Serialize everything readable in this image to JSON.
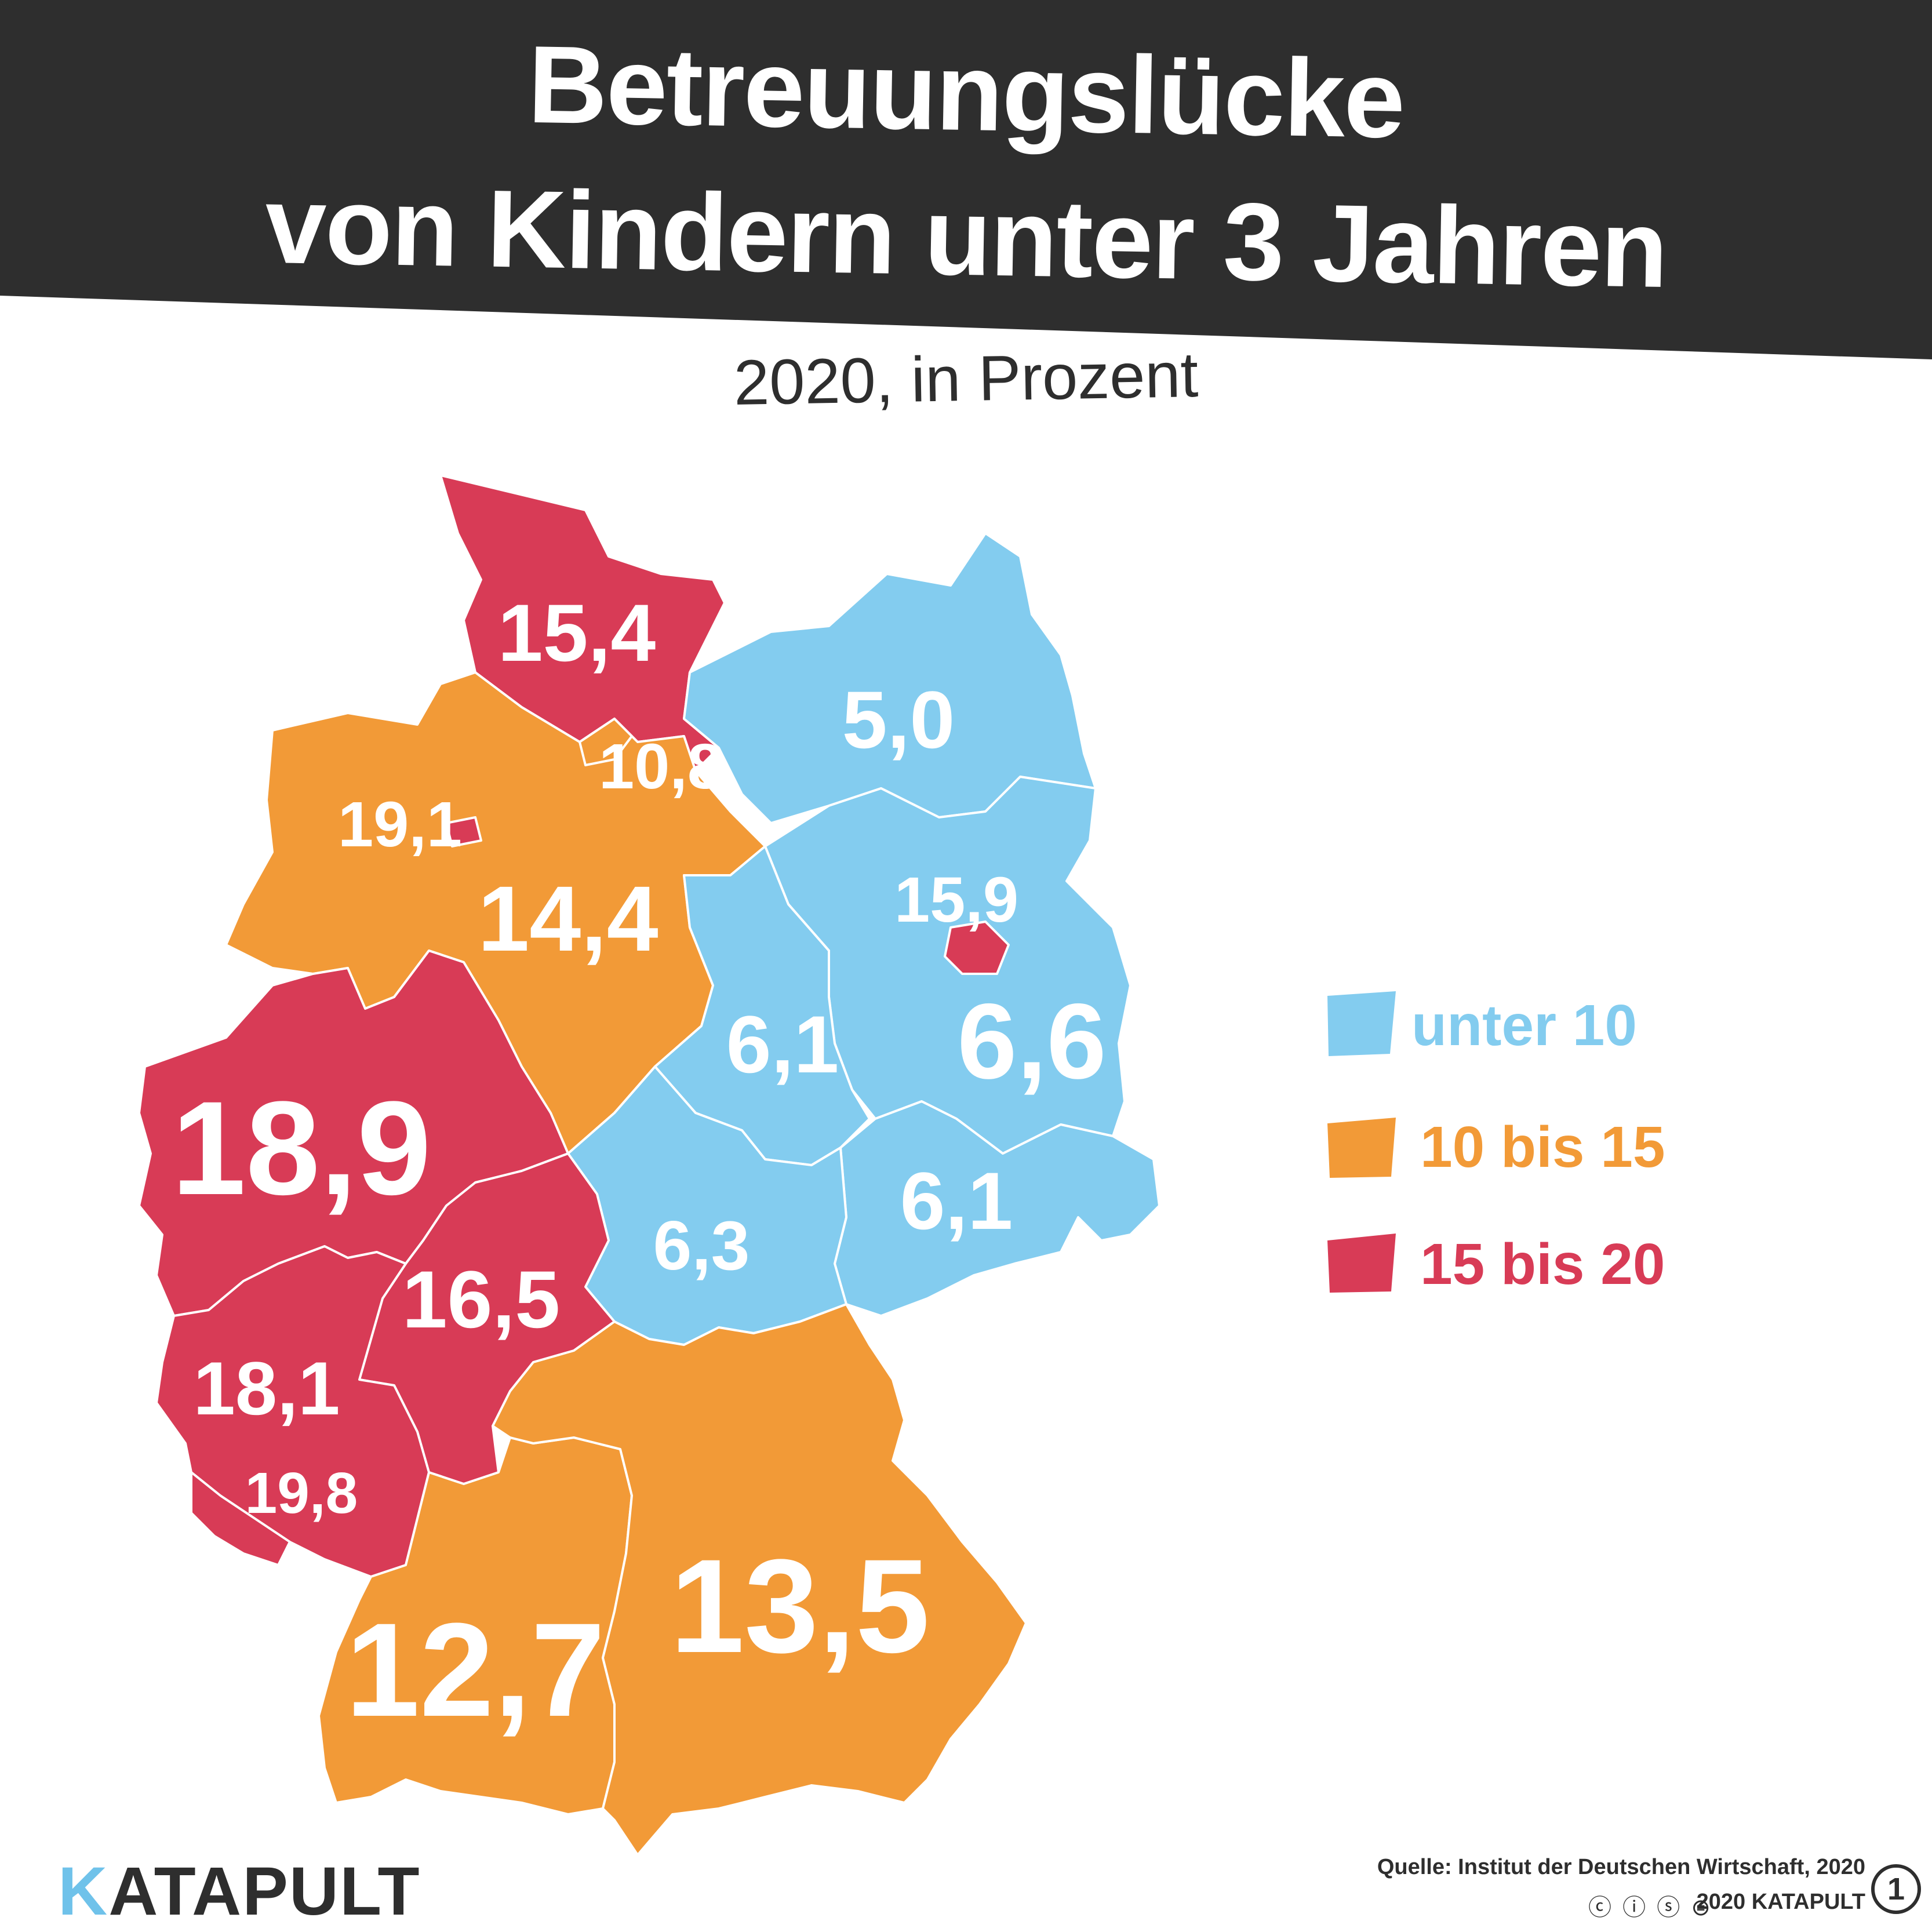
{
  "header": {
    "title_line1": "Betreuungslücke",
    "title_line2": "von Kindern unter 3 Jahren",
    "subtitle": "2020, in Prozent"
  },
  "colors": {
    "header_bg": "#2e2e2e",
    "blue": "#83ccef",
    "orange": "#f29a37",
    "red": "#d83b56",
    "text_dark": "#2e2e2e"
  },
  "states": [
    {
      "id": "schleswig-holstein",
      "value": "15,4",
      "category": "red"
    },
    {
      "id": "mecklenburg-vorpommern",
      "value": "5,0",
      "category": "blue"
    },
    {
      "id": "hamburg",
      "value": "10,8",
      "category": "orange"
    },
    {
      "id": "bremen",
      "value": "19,1",
      "category": "red"
    },
    {
      "id": "niedersachsen",
      "value": "14,4",
      "category": "orange"
    },
    {
      "id": "brandenburg",
      "value": "6,6",
      "category": "blue"
    },
    {
      "id": "berlin",
      "value": "15,9",
      "category": "red"
    },
    {
      "id": "sachsen-anhalt",
      "value": "6,1",
      "category": "blue"
    },
    {
      "id": "nordrhein-westfalen",
      "value": "18,9",
      "category": "red"
    },
    {
      "id": "hessen",
      "value": "16,5",
      "category": "red"
    },
    {
      "id": "thueringen",
      "value": "6,3",
      "category": "blue"
    },
    {
      "id": "sachsen",
      "value": "6,1",
      "category": "blue"
    },
    {
      "id": "rheinland-pfalz",
      "value": "18,1",
      "category": "red"
    },
    {
      "id": "saarland",
      "value": "19,8",
      "category": "red"
    },
    {
      "id": "baden-wuerttemberg",
      "value": "12,7",
      "category": "orange"
    },
    {
      "id": "bayern",
      "value": "13,5",
      "category": "orange"
    }
  ],
  "legend": [
    {
      "label": "unter 10",
      "color": "#83ccef"
    },
    {
      "label": "10 bis 15",
      "color": "#f29a37"
    },
    {
      "label": "15 bis 20",
      "color": "#d83b56"
    }
  ],
  "footer": {
    "source": "Quelle: Institut der Deutschen Wirtschaft, 2020",
    "copyright": "2020 KATAPULT",
    "license_icons": "ⓒ ⓘ ⓢ ⊜",
    "badge": "1",
    "logo_k": "K",
    "logo_rest": "ATAPULT"
  }
}
